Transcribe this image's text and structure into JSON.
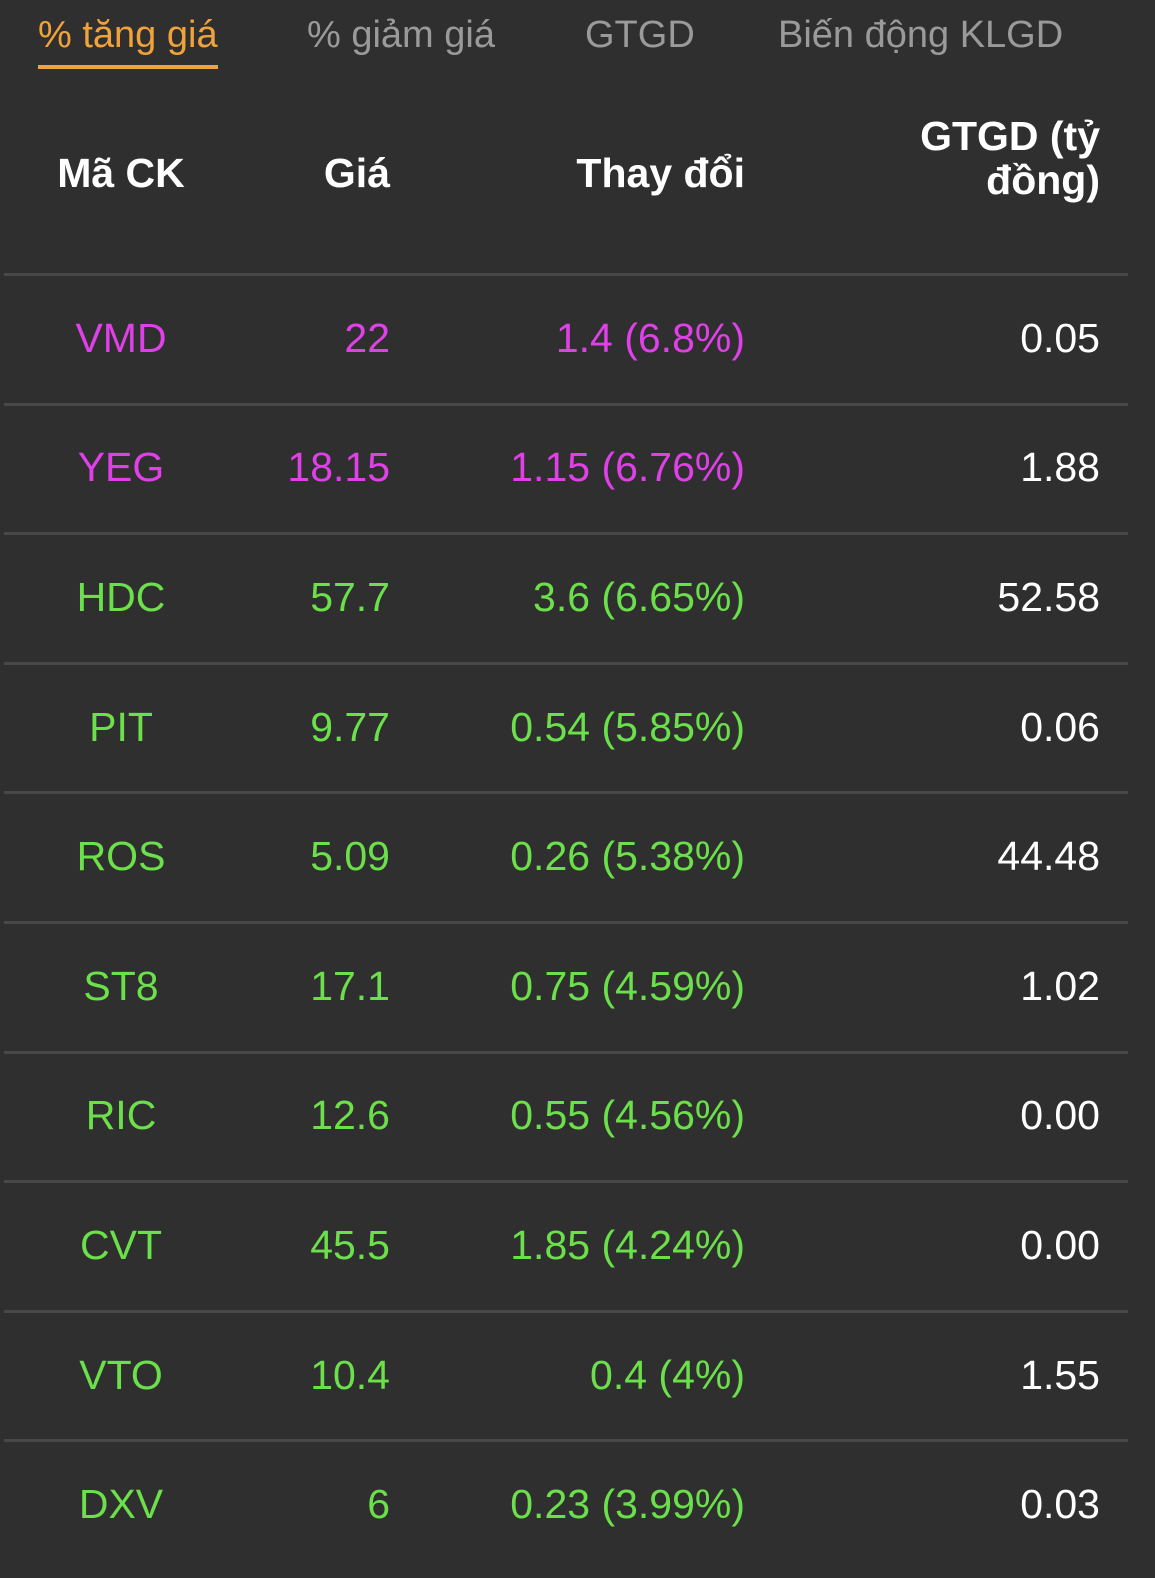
{
  "tabs": [
    {
      "label": "% tăng giá",
      "active": true
    },
    {
      "label": "% giảm giá",
      "active": false
    },
    {
      "label": "GTGD",
      "active": false
    },
    {
      "label": "Biến động KLGD",
      "active": false
    }
  ],
  "table": {
    "header": [
      "Mã CK",
      "Giá",
      "Thay đổi",
      "GTGD (tỷ đồng)"
    ],
    "rows": [
      {
        "cells": [
          "VMD",
          "22",
          "1.4 (6.8%)",
          "0.05"
        ],
        "color": "#e040e8"
      },
      {
        "cells": [
          "YEG",
          "18.15",
          "1.15 (6.76%)",
          "1.88"
        ],
        "color": "#e040e8"
      },
      {
        "cells": [
          "HDC",
          "57.7",
          "3.6 (6.65%)",
          "52.58"
        ],
        "color": "#6be04a"
      },
      {
        "cells": [
          "PIT",
          "9.77",
          "0.54 (5.85%)",
          "0.06"
        ],
        "color": "#6be04a"
      },
      {
        "cells": [
          "ROS",
          "5.09",
          "0.26 (5.38%)",
          "44.48"
        ],
        "color": "#6be04a"
      },
      {
        "cells": [
          "ST8",
          "17.1",
          "0.75 (4.59%)",
          "1.02"
        ],
        "color": "#6be04a"
      },
      {
        "cells": [
          "RIC",
          "12.6",
          "0.55 (4.56%)",
          "0.00"
        ],
        "color": "#6be04a"
      },
      {
        "cells": [
          "CVT",
          "45.5",
          "1.85 (4.24%)",
          "0.00"
        ],
        "color": "#6be04a"
      },
      {
        "cells": [
          "VTO",
          "10.4",
          "0.4 (4%)",
          "1.55"
        ],
        "color": "#6be04a"
      },
      {
        "cells": [
          "DXV",
          "6",
          "0.23 (3.99%)",
          "0.03"
        ],
        "color": "#6be04a"
      }
    ]
  }
}
